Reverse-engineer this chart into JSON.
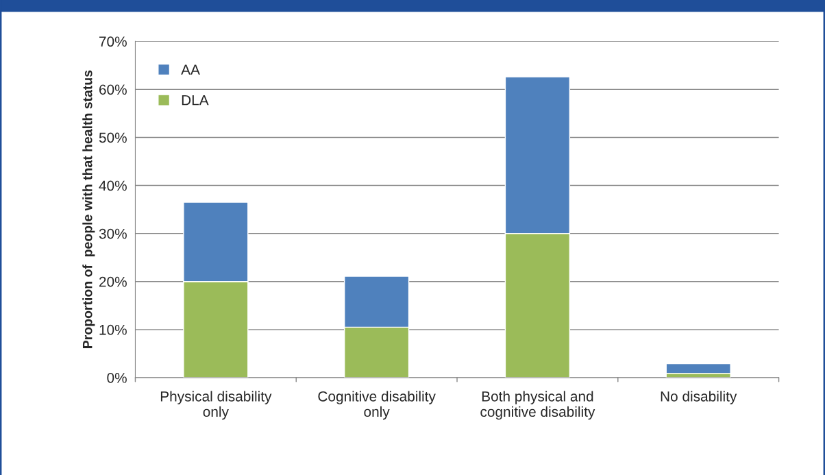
{
  "chart_data": {
    "type": "bar",
    "stacked": true,
    "ylabel": "Proportion of  people with that health status",
    "categories": [
      "Physical disability\nonly",
      "Cognitive disability\nonly",
      "Both physical and\ncognitive disability",
      "No disability"
    ],
    "series": [
      {
        "name": "DLA",
        "color": "#9bbb59",
        "values": [
          20,
          10.5,
          30,
          0.9
        ]
      },
      {
        "name": "AA",
        "color": "#4f81bd",
        "values": [
          16.5,
          10.6,
          32.6,
          2.0
        ]
      }
    ],
    "ylim": [
      0,
      70
    ],
    "yticks": [
      {
        "value": 0,
        "label": "0%"
      },
      {
        "value": 10,
        "label": "10%"
      },
      {
        "value": 20,
        "label": "20%"
      },
      {
        "value": 30,
        "label": "30%"
      },
      {
        "value": 40,
        "label": "40%"
      },
      {
        "value": 50,
        "label": "50%"
      },
      {
        "value": 60,
        "label": "60%"
      },
      {
        "value": 70,
        "label": "70%"
      }
    ],
    "grid": "y",
    "legend": "top left"
  }
}
